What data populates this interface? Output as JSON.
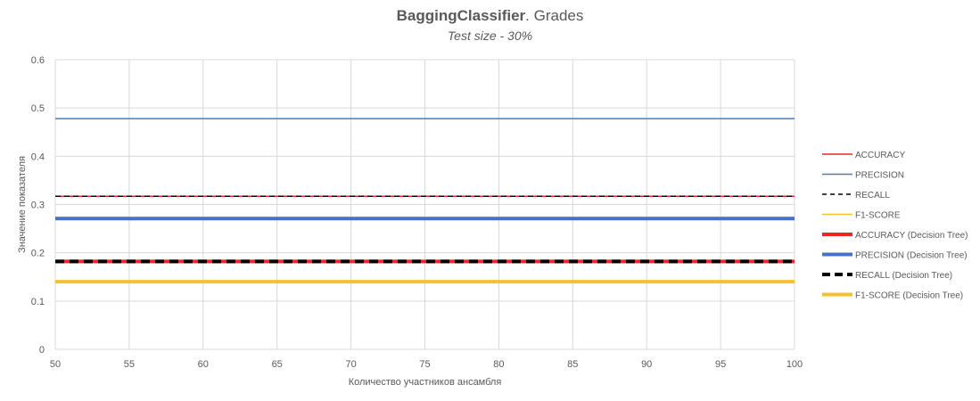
{
  "chart_data": {
    "type": "line",
    "title_bold": "BaggingClassifier",
    "title_rest": ". Grades",
    "subtitle": "Test size - 30%",
    "xlabel": "Количество участников ансамбля",
    "ylabel": "Значение показателя",
    "x": [
      50,
      55,
      60,
      65,
      70,
      75,
      80,
      85,
      90,
      95,
      100
    ],
    "xlim": [
      50,
      100
    ],
    "ylim": [
      0,
      0.6
    ],
    "y_ticks": [
      "0",
      "0.1",
      "0.2",
      "0.3",
      "0.4",
      "0.5",
      "0.6"
    ],
    "x_ticks": [
      "50",
      "55",
      "60",
      "65",
      "70",
      "75",
      "80",
      "85",
      "90",
      "95",
      "100"
    ],
    "grid": true,
    "legend_position": "right",
    "series": [
      {
        "name": "ACCURACY",
        "value": 0.317,
        "color": "#e8272a",
        "style": "solid",
        "weight": "thin"
      },
      {
        "name": "PRECISION",
        "value": 0.478,
        "color": "#4a7fb5",
        "style": "solid",
        "weight": "thin"
      },
      {
        "name": "RECALL",
        "value": 0.317,
        "color": "#000000",
        "style": "dashed",
        "weight": "thin"
      },
      {
        "name": "F1-SCORE",
        "value": 0.14,
        "color": "#f2c231",
        "style": "solid",
        "weight": "thin"
      },
      {
        "name": "ACCURACY (Decision Tree)",
        "value": 0.182,
        "color": "#e8272a",
        "style": "solid",
        "weight": "thick"
      },
      {
        "name": "PRECISION (Decision Tree)",
        "value": 0.271,
        "color": "#4472c4",
        "style": "solid",
        "weight": "thick"
      },
      {
        "name": "RECALL (Decision Tree)",
        "value": 0.182,
        "color": "#000000",
        "style": "dashed",
        "weight": "thick"
      },
      {
        "name": "F1-SCORE (Decision Tree)",
        "value": 0.14,
        "color": "#f2c231",
        "style": "solid",
        "weight": "thick"
      }
    ]
  }
}
